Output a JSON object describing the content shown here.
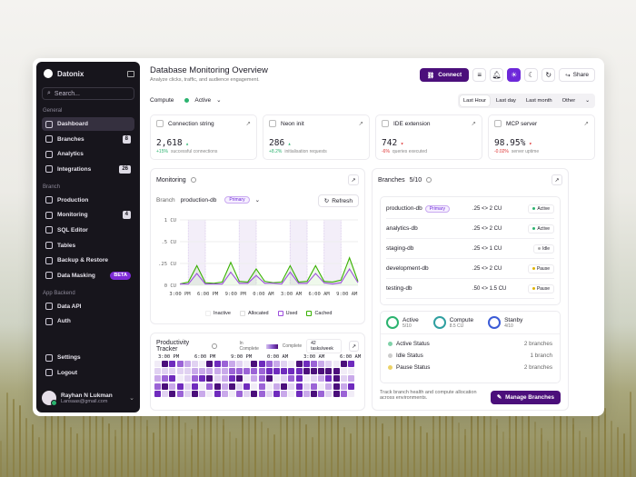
{
  "app": {
    "name": "Datonix",
    "search_placeholder": "Search..."
  },
  "sidebar": {
    "group_general": "General",
    "general": [
      {
        "label": "Dashboard",
        "icon": "dashboard-icon",
        "active": true
      },
      {
        "label": "Branches",
        "icon": "branch-icon",
        "badge": "8"
      },
      {
        "label": "Analytics",
        "icon": "analytics-icon"
      },
      {
        "label": "Integrations",
        "icon": "integrations-icon",
        "badge": "26"
      }
    ],
    "group_branch": "Branch",
    "branch": [
      {
        "label": "Production",
        "icon": "server-icon"
      },
      {
        "label": "Monitoring",
        "icon": "monitor-icon",
        "badge": "4"
      },
      {
        "label": "SQL Editor",
        "icon": "code-icon"
      },
      {
        "label": "Tables",
        "icon": "table-icon"
      },
      {
        "label": "Backup & Restore",
        "icon": "backup-icon"
      },
      {
        "label": "Data Masking",
        "icon": "mask-icon",
        "beta": "BETA"
      }
    ],
    "group_app": "App Backend",
    "app": [
      {
        "label": "Data API",
        "icon": "api-icon"
      },
      {
        "label": "Auth",
        "icon": "shield-icon"
      }
    ],
    "bottom": [
      {
        "label": "Settings",
        "icon": "gear-icon"
      },
      {
        "label": "Logout",
        "icon": "logout-icon"
      }
    ],
    "user": {
      "name": "Rayhan N Lukman",
      "email": "Lansaas@gmail.com"
    }
  },
  "header": {
    "title": "Database Monitoring Overview",
    "subtitle": "Analyze clicks, traffic, and audience engagement.",
    "connect": "Connect",
    "share": "Share",
    "compute_label": "Compute",
    "compute_status": "Active"
  },
  "ranges": [
    "Last Hour",
    "Last day",
    "Last month",
    "Other"
  ],
  "stats": [
    {
      "title": "Connection string",
      "value": "2,618",
      "trend": "up",
      "change": "+15%",
      "note": "successful connections"
    },
    {
      "title": "Neon init",
      "value": "286",
      "trend": "up",
      "change": "+8.2%",
      "note": "initialisation requests"
    },
    {
      "title": "IDE extension",
      "value": "742",
      "trend": "down",
      "change": "-6%",
      "note": "queries executed"
    },
    {
      "title": "MCP server",
      "value": "98.95%",
      "trend": "down",
      "change": "-0.02%",
      "note": "server uptime"
    }
  ],
  "monitoring": {
    "title": "Monitoring",
    "branch_label": "Branch",
    "branch": "production-db",
    "branch_tag": "Primary",
    "refresh": "Refresh",
    "legend": [
      "Inactive",
      "Allocated",
      "Used",
      "Cached"
    ]
  },
  "chart_data": {
    "type": "line",
    "ylabel": "CU",
    "yticks": [
      "1 CU",
      ".5 CU",
      ".25 CU",
      "0 CU"
    ],
    "xticks": [
      "3:00 PM",
      "6:00 PM",
      "9:00 PM",
      "0:00 AM",
      "3:00 AM",
      "6:00 AM",
      "9:00 AM"
    ],
    "series": [
      {
        "name": "Used",
        "values": [
          0.02,
          0.02,
          0.18,
          0.02,
          0.02,
          0.02,
          0.2,
          0.03,
          0.03,
          0.15,
          0.03,
          0.03,
          0.02,
          0.2,
          0.03,
          0.03,
          0.18,
          0.04,
          0.02,
          0.04,
          0.25,
          0.04
        ]
      },
      {
        "name": "Cached",
        "values": [
          0.02,
          0.05,
          0.3,
          0.04,
          0.03,
          0.05,
          0.35,
          0.06,
          0.05,
          0.25,
          0.06,
          0.04,
          0.05,
          0.3,
          0.05,
          0.06,
          0.3,
          0.06,
          0.05,
          0.08,
          0.42,
          0.06
        ]
      }
    ],
    "inactive_bands": [
      [
        1,
        3
      ],
      [
        7,
        9
      ],
      [
        13,
        15
      ],
      [
        17,
        19
      ]
    ],
    "colors": {
      "Used": "#9d4edd",
      "Cached": "#38b000"
    }
  },
  "tracker": {
    "title": "Productivity Tracker",
    "legend_in": "In Complete",
    "legend_done": "Complete",
    "count": "42 tasks/week",
    "xticks": [
      "3:00 PM",
      "6:00 PM",
      "9:00 PM",
      "0:00 AM",
      "3:00 AM",
      "6:00 AM"
    ]
  },
  "branches": {
    "title": "Branches",
    "count": "5/10",
    "rows": [
      {
        "name": "production-db",
        "tag": "Primary",
        "cu": ".25 <> 2 CU",
        "status": "Active",
        "color": "#2bb36f"
      },
      {
        "name": "analytics-db",
        "cu": ".25 <> 2 CU",
        "status": "Active",
        "color": "#2bb36f"
      },
      {
        "name": "staging-db",
        "cu": ".25 <> 1 CU",
        "status": "Idle",
        "color": "#aaa"
      },
      {
        "name": "development-db",
        "cu": ".25 <> 2 CU",
        "status": "Pause",
        "color": "#e0b400"
      },
      {
        "name": "testing-db",
        "cu": ".50 <> 1.5 CU",
        "status": "Pause",
        "color": "#e0b400"
      }
    ],
    "summary": [
      {
        "label": "Active",
        "value": "5/10"
      },
      {
        "label": "Compute",
        "value": "8.5 CU"
      },
      {
        "label": "Stanby",
        "value": "4/10"
      }
    ],
    "status": [
      {
        "label": "Active Status",
        "value": "2 branches"
      },
      {
        "label": "Idle Status",
        "value": "1 branch"
      },
      {
        "label": "Pause Status",
        "value": "2 branches"
      }
    ],
    "footer": "Track branch health and compute allocation across environments.",
    "manage": "Manage Branches"
  }
}
